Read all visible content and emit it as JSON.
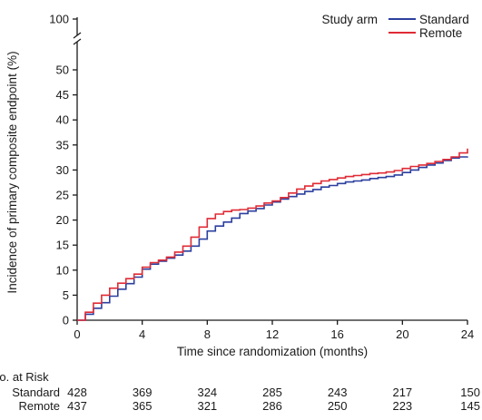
{
  "chart_data": {
    "type": "line",
    "xlabel": "Time since randomization (months)",
    "ylabel": "Incidence of primary composite endpoint (%)",
    "xlim": [
      0,
      24
    ],
    "ylim": [
      0,
      100
    ],
    "axis_break": [
      52,
      98
    ],
    "x_ticks": [
      "0",
      "4",
      "8",
      "12",
      "16",
      "20",
      "24"
    ],
    "y_ticks": [
      "0",
      "5",
      "10",
      "15",
      "20",
      "25",
      "30",
      "35",
      "40",
      "45",
      "50",
      "100"
    ],
    "grid": false,
    "legend": {
      "title": "Study arm",
      "position": "top-right"
    },
    "series": [
      {
        "name": "Standard",
        "color": "#2b3f9e",
        "x": [
          0,
          0.5,
          1,
          1.5,
          2,
          2.5,
          3,
          3.5,
          4,
          4.5,
          5,
          5.5,
          6,
          6.5,
          7,
          7.5,
          8,
          8.5,
          9,
          9.5,
          10,
          10.5,
          11,
          11.5,
          12,
          12.5,
          13,
          13.5,
          14,
          14.5,
          15,
          15.5,
          16,
          16.5,
          17,
          17.5,
          18,
          18.5,
          19,
          19.5,
          20,
          20.5,
          21,
          21.5,
          22,
          22.5,
          23,
          23.5,
          24
        ],
        "y": [
          0,
          1.2,
          2.4,
          3.5,
          4.8,
          6.2,
          7.3,
          8.6,
          10.2,
          11.2,
          11.8,
          12.4,
          13.0,
          13.8,
          14.8,
          16.2,
          17.8,
          18.8,
          19.6,
          20.4,
          21.3,
          21.8,
          22.3,
          23.0,
          23.6,
          24.2,
          24.7,
          25.2,
          25.7,
          26.1,
          26.6,
          26.9,
          27.3,
          27.6,
          27.8,
          28.0,
          28.3,
          28.5,
          28.7,
          29.0,
          29.5,
          30.0,
          30.5,
          31.0,
          31.4,
          31.9,
          32.4,
          32.6,
          32.7
        ]
      },
      {
        "name": "Remote",
        "color": "#e02b35",
        "x": [
          0,
          0.5,
          1,
          1.5,
          2,
          2.5,
          3,
          3.5,
          4,
          4.5,
          5,
          5.5,
          6,
          6.5,
          7,
          7.5,
          8,
          8.5,
          9,
          9.5,
          10,
          10.5,
          11,
          11.5,
          12,
          12.5,
          13,
          13.5,
          14,
          14.5,
          15,
          15.5,
          16,
          16.5,
          17,
          17.5,
          18,
          18.5,
          19,
          19.5,
          20,
          20.5,
          21,
          21.5,
          22,
          22.5,
          23,
          23.5,
          24
        ],
        "y": [
          0,
          1.6,
          3.4,
          5.0,
          6.4,
          7.4,
          8.3,
          9.2,
          10.6,
          11.5,
          12.0,
          12.6,
          13.6,
          14.8,
          16.6,
          18.6,
          20.3,
          21.2,
          21.7,
          22.0,
          22.1,
          22.4,
          22.8,
          23.4,
          23.8,
          24.5,
          25.4,
          26.2,
          26.8,
          27.3,
          27.8,
          28.1,
          28.4,
          28.7,
          28.9,
          29.1,
          29.3,
          29.4,
          29.6,
          29.9,
          30.3,
          30.7,
          31.0,
          31.3,
          31.7,
          32.1,
          32.6,
          33.4,
          34.3
        ]
      }
    ],
    "risk_table": {
      "title": "No. at Risk",
      "times": [
        0,
        4,
        8,
        12,
        16,
        20,
        24
      ],
      "rows": [
        {
          "label": "Standard",
          "values": [
            "428",
            "369",
            "324",
            "285",
            "243",
            "217",
            "150"
          ]
        },
        {
          "label": "Remote",
          "values": [
            "437",
            "365",
            "321",
            "286",
            "250",
            "223",
            "145"
          ]
        }
      ]
    }
  }
}
